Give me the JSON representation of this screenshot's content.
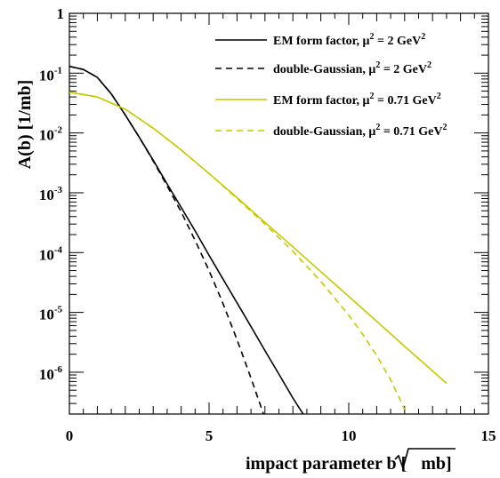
{
  "chart_data": {
    "type": "line",
    "xlabel": "impact parameter b [",
    "xlabel_root": "mb",
    "xlabel_end": "]",
    "ylabel": "A(b) [1/mb]",
    "xlim": [
      0,
      15
    ],
    "ylim": [
      2e-07,
      1
    ],
    "yscale": "log",
    "grid": false,
    "legend_position": "top-right",
    "x_ticks": [
      {
        "value": 0,
        "label": "0"
      },
      {
        "value": 5,
        "label": "5"
      },
      {
        "value": 10,
        "label": "10"
      },
      {
        "value": 15,
        "label": "15"
      }
    ],
    "y_ticks": [
      {
        "value": 1,
        "base": "1",
        "exp": ""
      },
      {
        "value": 0.1,
        "base": "10",
        "exp": "-1"
      },
      {
        "value": 0.01,
        "base": "10",
        "exp": "-2"
      },
      {
        "value": 0.001,
        "base": "10",
        "exp": "-3"
      },
      {
        "value": 0.0001,
        "base": "10",
        "exp": "-4"
      },
      {
        "value": 1e-05,
        "base": "10",
        "exp": "-5"
      },
      {
        "value": 1e-06,
        "base": "10",
        "exp": "-6"
      }
    ],
    "series": [
      {
        "name": "EM form factor, μ² = 2 GeV²",
        "label_main": "EM form factor, μ",
        "label_sup": "2",
        "label_mid": " = 2 GeV",
        "label_sup2": "2",
        "color": "#000000",
        "dash": "solid",
        "x": [
          0,
          0.5,
          1,
          1.5,
          2,
          2.5,
          3,
          3.5,
          4,
          4.5,
          5,
          5.5,
          6,
          6.5,
          7,
          7.5,
          8,
          8.5
        ],
        "y": [
          0.13,
          0.115,
          0.085,
          0.045,
          0.02,
          0.0085,
          0.0035,
          0.0014,
          0.00057,
          0.00023,
          9e-05,
          3.6e-05,
          1.45e-05,
          5.8e-06,
          2.3e-06,
          9.3e-07,
          3.7e-07,
          1.6e-07
        ]
      },
      {
        "name": "double-Gaussian, μ² = 2 GeV²",
        "label_main": "double-Gaussian, μ",
        "label_sup": "2",
        "label_mid": " = 2 GeV",
        "label_sup2": "2",
        "color": "#000000",
        "dash": "dashed",
        "x": [
          0,
          0.5,
          1,
          1.5,
          2,
          2.5,
          3,
          3.5,
          4,
          4.5,
          5,
          5.5,
          6,
          6.5,
          7,
          7.5
        ],
        "y": [
          0.13,
          0.115,
          0.085,
          0.045,
          0.02,
          0.0085,
          0.0034,
          0.0013,
          0.00048,
          0.00016,
          5e-05,
          1.4e-05,
          3.5e-06,
          8e-07,
          1.7e-07,
          3e-08
        ]
      },
      {
        "name": "EM form factor, μ² = 0.71 GeV²",
        "label_main": "EM form factor, μ",
        "label_sup": "2",
        "label_mid": " = 0.71 GeV",
        "label_sup2": "2",
        "color": "#c8c800",
        "dash": "solid",
        "x": [
          0,
          1,
          2,
          3,
          4,
          5,
          6,
          7,
          8,
          9,
          10,
          11,
          12,
          13,
          13.5
        ],
        "y": [
          0.048,
          0.04,
          0.025,
          0.012,
          0.0052,
          0.0021,
          0.00083,
          0.00032,
          0.000125,
          4.8e-05,
          1.85e-05,
          7.1e-06,
          2.7e-06,
          1.05e-06,
          6.5e-07
        ]
      },
      {
        "name": "double-Gaussian, μ² = 0.71 GeV²",
        "label_main": "double-Gaussian, μ",
        "label_sup": "2",
        "label_mid": " = 0.71 GeV",
        "label_sup2": "2",
        "color": "#c8c800",
        "dash": "dashed",
        "x": [
          0,
          1,
          2,
          3,
          4,
          5,
          6,
          7,
          8,
          9,
          10,
          10.5,
          11,
          11.5,
          12
        ],
        "y": [
          0.048,
          0.04,
          0.025,
          0.012,
          0.0052,
          0.0021,
          0.0008,
          0.0003,
          0.000105,
          3.3e-05,
          9e-06,
          4.3e-06,
          1.9e-06,
          7.5e-07,
          2.4e-07
        ]
      }
    ]
  }
}
